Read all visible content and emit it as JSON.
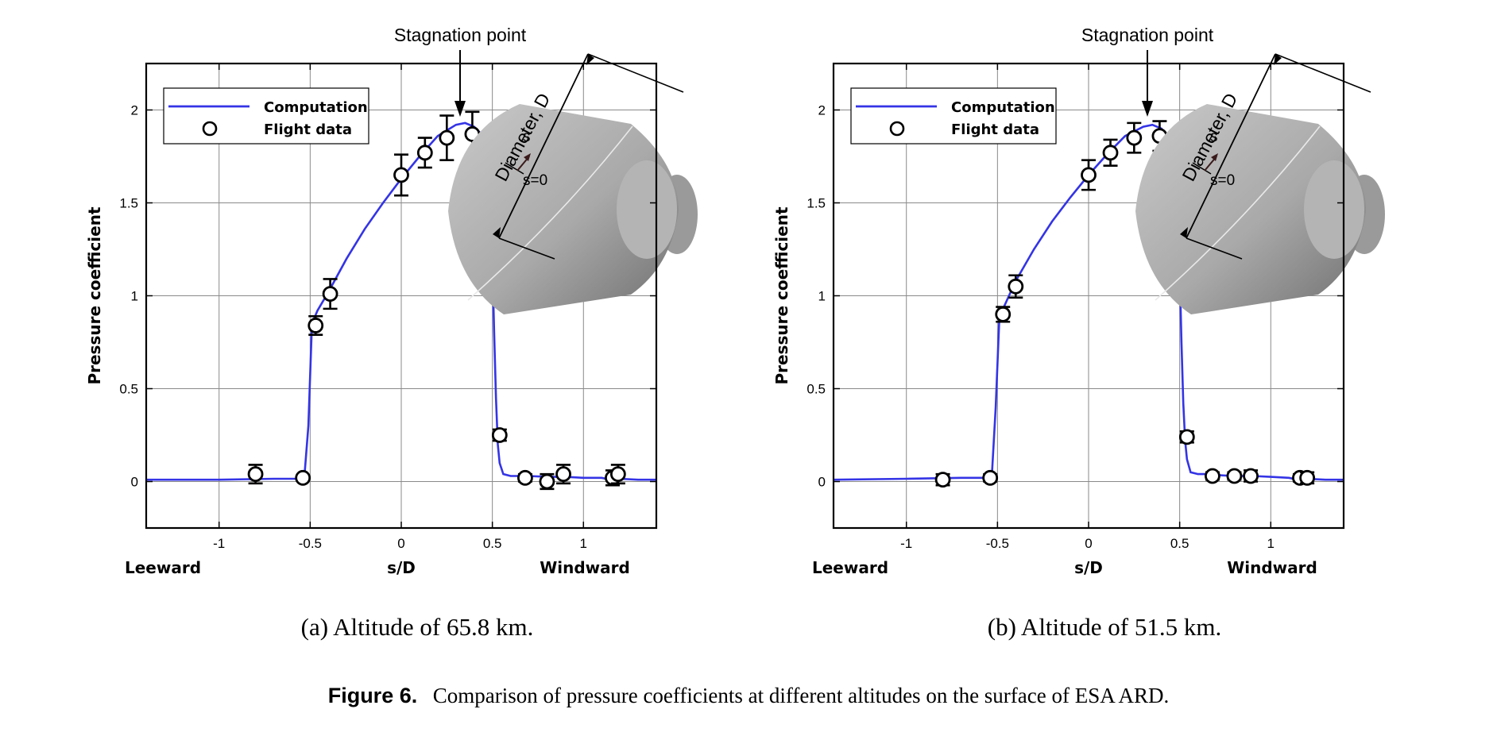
{
  "figure": {
    "caption_label": "Figure 6.",
    "caption_text": "Comparison of pressure coefficients at different altitudes on the surface of ESA ARD."
  },
  "colors": {
    "computation": "#3434e6",
    "marker_edge": "#000000",
    "capsule_light": "#c9c9c9",
    "capsule_dark": "#6f6f6f"
  },
  "chart_data": [
    {
      "type": "line",
      "subcaption": "(a) Altitude of 65.8 km.",
      "xlabel": "s/D",
      "ylabel": "Pressure coefficient",
      "xlabel_left": "Leeward",
      "xlabel_right": "Windward",
      "xlim": [
        -1.4,
        1.4
      ],
      "ylim": [
        -0.25,
        2.25
      ],
      "xticks": [
        -1,
        -0.5,
        0,
        0.5,
        1
      ],
      "xtick_labels": [
        "-1",
        "-0.5",
        "0",
        "0.5",
        "1"
      ],
      "yticks": [
        0,
        0.5,
        1,
        1.5,
        2
      ],
      "ytick_labels": [
        "0",
        "0.5",
        "1",
        "1.5",
        "2"
      ],
      "grid": true,
      "legend_position": "top-left",
      "annotations": {
        "stagnation": "Stagnation point",
        "diameter": "Diameter, D",
        "s_label": "s",
        "s0_label": "s=0"
      },
      "series": [
        {
          "name": "Computation",
          "style": "line",
          "x": [
            -1.4,
            -1.0,
            -0.7,
            -0.56,
            -0.53,
            -0.51,
            -0.49,
            -0.46,
            -0.4,
            -0.3,
            -0.2,
            -0.1,
            0.0,
            0.1,
            0.2,
            0.3,
            0.35,
            0.4,
            0.45,
            0.47,
            0.49,
            0.5,
            0.51,
            0.52,
            0.53,
            0.54,
            0.56,
            0.6,
            0.65,
            0.7,
            0.8,
            0.9,
            1.0,
            1.1,
            1.15,
            1.2,
            1.3,
            1.4
          ],
          "y": [
            0.01,
            0.01,
            0.015,
            0.015,
            0.05,
            0.3,
            0.85,
            0.92,
            1.02,
            1.2,
            1.36,
            1.5,
            1.63,
            1.75,
            1.86,
            1.92,
            1.93,
            1.91,
            1.86,
            1.78,
            1.55,
            1.2,
            0.8,
            0.45,
            0.2,
            0.1,
            0.04,
            0.03,
            0.03,
            0.03,
            0.025,
            0.025,
            0.02,
            0.02,
            0.01,
            0.015,
            0.01,
            0.01
          ]
        },
        {
          "name": "Flight data",
          "style": "marker",
          "x": [
            -0.8,
            -0.54,
            -0.47,
            -0.39,
            0.0,
            0.13,
            0.25,
            0.39,
            0.48,
            0.54,
            0.68,
            0.8,
            0.89,
            1.16,
            1.19
          ],
          "y": [
            0.04,
            0.02,
            0.84,
            1.01,
            1.65,
            1.77,
            1.85,
            1.87,
            1.74,
            0.25,
            0.02,
            0.0,
            0.04,
            0.02,
            0.04
          ],
          "err": [
            0.05,
            0.0,
            0.05,
            0.08,
            0.11,
            0.08,
            0.12,
            0.12,
            0.09,
            0.03,
            0.02,
            0.04,
            0.05,
            0.04,
            0.05
          ]
        }
      ]
    },
    {
      "type": "line",
      "subcaption": "(b) Altitude of 51.5 km.",
      "xlabel": "s/D",
      "ylabel": "Pressure coefficient",
      "xlabel_left": "Leeward",
      "xlabel_right": "Windward",
      "xlim": [
        -1.4,
        1.4
      ],
      "ylim": [
        -0.25,
        2.25
      ],
      "xticks": [
        -1,
        -0.5,
        0,
        0.5,
        1
      ],
      "xtick_labels": [
        "-1",
        "-0.5",
        "0",
        "0.5",
        "1"
      ],
      "yticks": [
        0,
        0.5,
        1,
        1.5,
        2
      ],
      "ytick_labels": [
        "0",
        "0.5",
        "1",
        "1.5",
        "2"
      ],
      "grid": true,
      "legend_position": "top-left",
      "annotations": {
        "stagnation": "Stagnation point",
        "diameter": "Diameter, D",
        "s_label": "s",
        "s0_label": "s=0"
      },
      "series": [
        {
          "name": "Computation",
          "style": "line",
          "x": [
            -1.4,
            -1.0,
            -0.7,
            -0.56,
            -0.53,
            -0.51,
            -0.49,
            -0.46,
            -0.4,
            -0.3,
            -0.2,
            -0.1,
            0.0,
            0.1,
            0.2,
            0.3,
            0.35,
            0.4,
            0.45,
            0.47,
            0.49,
            0.5,
            0.51,
            0.52,
            0.53,
            0.54,
            0.56,
            0.6,
            0.65,
            0.7,
            0.8,
            0.9,
            1.0,
            1.1,
            1.15,
            1.2,
            1.3,
            1.4
          ],
          "y": [
            0.01,
            0.015,
            0.02,
            0.02,
            0.05,
            0.4,
            0.88,
            0.95,
            1.08,
            1.25,
            1.4,
            1.53,
            1.65,
            1.76,
            1.86,
            1.91,
            1.92,
            1.9,
            1.84,
            1.76,
            1.5,
            1.15,
            0.75,
            0.42,
            0.22,
            0.12,
            0.05,
            0.04,
            0.04,
            0.035,
            0.03,
            0.03,
            0.025,
            0.02,
            0.01,
            0.015,
            0.01,
            0.01
          ]
        },
        {
          "name": "Flight data",
          "style": "marker",
          "x": [
            -0.8,
            -0.54,
            -0.47,
            -0.4,
            0.0,
            0.12,
            0.25,
            0.39,
            0.48,
            0.54,
            0.68,
            0.8,
            0.89,
            1.16,
            1.2
          ],
          "y": [
            0.01,
            0.02,
            0.9,
            1.05,
            1.65,
            1.77,
            1.85,
            1.86,
            1.7,
            0.24,
            0.03,
            0.03,
            0.03,
            0.02,
            0.02
          ],
          "err": [
            0.03,
            0.02,
            0.04,
            0.06,
            0.08,
            0.07,
            0.08,
            0.08,
            0.07,
            0.03,
            0.02,
            0.02,
            0.03,
            0.02,
            0.03
          ]
        }
      ]
    }
  ]
}
